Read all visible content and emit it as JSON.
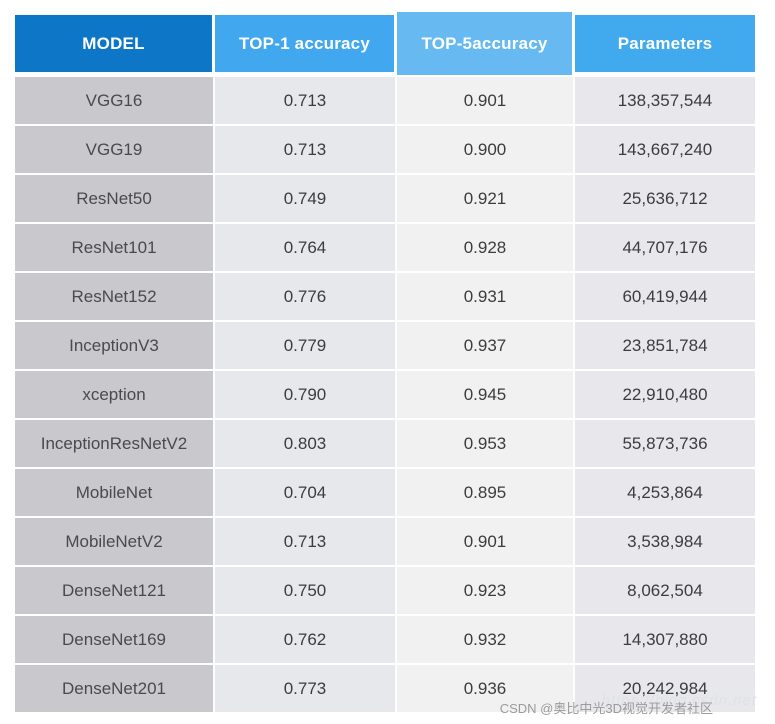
{
  "table": {
    "columns": [
      {
        "label": "MODEL",
        "header_bg": "#0e76c6",
        "body_bg": "#c9c9cd"
      },
      {
        "label": "TOP-1 accuracy",
        "header_bg": "#41a7ee",
        "body_bg": "#e7e8ec"
      },
      {
        "label": "TOP-5accuracy",
        "header_bg": "#66b9f1",
        "body_bg": "#f1f1f2"
      },
      {
        "label": "Parameters",
        "header_bg": "#41a9ee",
        "body_bg": "#e8e8ec"
      }
    ],
    "rows": [
      {
        "model": "VGG16",
        "top1": "0.713",
        "top5": "0.901",
        "params": "138,357,544"
      },
      {
        "model": "VGG19",
        "top1": "0.713",
        "top5": "0.900",
        "params": "143,667,240"
      },
      {
        "model": "ResNet50",
        "top1": "0.749",
        "top5": "0.921",
        "params": "25,636,712"
      },
      {
        "model": "ResNet101",
        "top1": "0.764",
        "top5": "0.928",
        "params": "44,707,176"
      },
      {
        "model": "ResNet152",
        "top1": "0.776",
        "top5": "0.931",
        "params": "60,419,944"
      },
      {
        "model": "InceptionV3",
        "top1": "0.779",
        "top5": "0.937",
        "params": "23,851,784"
      },
      {
        "model": "xception",
        "top1": "0.790",
        "top5": "0.945",
        "params": "22,910,480"
      },
      {
        "model": "InceptionResNetV2",
        "top1": "0.803",
        "top5": "0.953",
        "params": "55,873,736"
      },
      {
        "model": "MobileNet",
        "top1": "0.704",
        "top5": "0.895",
        "params": "4,253,864"
      },
      {
        "model": "MobileNetV2",
        "top1": "0.713",
        "top5": "0.901",
        "params": "3,538,984"
      },
      {
        "model": "DenseNet121",
        "top1": "0.750",
        "top5": "0.923",
        "params": "8,062,504"
      },
      {
        "model": "DenseNet169",
        "top1": "0.762",
        "top5": "0.932",
        "params": "14,307,880"
      },
      {
        "model": "DenseNet201",
        "top1": "0.773",
        "top5": "0.936",
        "params": "20,242,984"
      }
    ]
  },
  "watermark": {
    "faint_url": "https://blog.csdn.net",
    "label": "CSDN @奥比中光3D视觉开发者社区"
  },
  "colors": {
    "header_model": "#0e76c6",
    "header_top1": "#41a7ee",
    "header_top5": "#66b9f1",
    "header_params": "#41a9ee",
    "body_model": "#c9c9cd",
    "body_value": "#e8e8ec",
    "body_value_light": "#f1f1f2",
    "header_text": "#ffffff",
    "body_text": "#3c3c3e",
    "watermark_text": "#9b9b9b"
  },
  "chart_data": {
    "type": "table",
    "title": "",
    "columns": [
      "MODEL",
      "TOP-1 accuracy",
      "TOP-5accuracy",
      "Parameters"
    ],
    "rows": [
      [
        "VGG16",
        0.713,
        0.901,
        138357544
      ],
      [
        "VGG19",
        0.713,
        0.9,
        143667240
      ],
      [
        "ResNet50",
        0.749,
        0.921,
        25636712
      ],
      [
        "ResNet101",
        0.764,
        0.928,
        44707176
      ],
      [
        "ResNet152",
        0.776,
        0.931,
        60419944
      ],
      [
        "InceptionV3",
        0.779,
        0.937,
        23851784
      ],
      [
        "xception",
        0.79,
        0.945,
        22910480
      ],
      [
        "InceptionResNetV2",
        0.803,
        0.953,
        55873736
      ],
      [
        "MobileNet",
        0.704,
        0.895,
        4253864
      ],
      [
        "MobileNetV2",
        0.713,
        0.901,
        3538984
      ],
      [
        "DenseNet121",
        0.75,
        0.923,
        8062504
      ],
      [
        "DenseNet169",
        0.762,
        0.932,
        14307880
      ],
      [
        "DenseNet201",
        0.773,
        0.936,
        20242984
      ]
    ]
  }
}
